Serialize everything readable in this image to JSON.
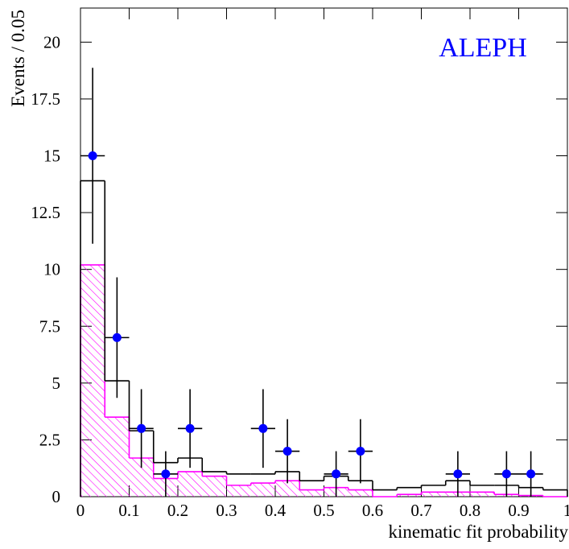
{
  "chart_data": {
    "type": "histogram",
    "ylabel": "Events / 0.05",
    "xlabel": "kinematic fit probability",
    "annotation": "ALEPH",
    "annotation_color": "#0000ff",
    "bins": [
      0,
      0.05,
      0.1,
      0.15,
      0.2,
      0.25,
      0.3,
      0.35,
      0.4,
      0.45,
      0.5,
      0.55,
      0.6,
      0.65,
      0.7,
      0.75,
      0.8,
      0.85,
      0.9,
      0.95,
      1
    ],
    "series": [
      {
        "color": "#000000",
        "hatch": false,
        "values": [
          13.9,
          5.1,
          2.9,
          1.5,
          1.7,
          1.1,
          1.0,
          1.0,
          1.1,
          0.7,
          0.9,
          0.7,
          0.3,
          0.4,
          0.5,
          0.7,
          0.5,
          0.5,
          0.4,
          0.3
        ]
      },
      {
        "color": "#ff00ff",
        "hatch": true,
        "values": [
          10.2,
          3.5,
          1.7,
          0.8,
          1.1,
          0.9,
          0.5,
          0.6,
          0.7,
          0.3,
          0.4,
          0.3,
          0,
          0.1,
          0.2,
          0.2,
          0.2,
          0.1,
          0.05,
          0
        ]
      }
    ],
    "points": {
      "color": "#0000ff",
      "x_error": 0.025,
      "x": [
        0.025,
        0.075,
        0.125,
        0.175,
        0.225,
        0.375,
        0.425,
        0.525,
        0.575,
        0.775,
        0.875,
        0.925
      ],
      "values": [
        15,
        7,
        3,
        1,
        3,
        3,
        2,
        1,
        2,
        1,
        1,
        1
      ],
      "errors": [
        3.87,
        2.65,
        1.73,
        1,
        1.73,
        1.73,
        1.41,
        1,
        1.41,
        1,
        1,
        1
      ]
    },
    "xlim": [
      0,
      1
    ],
    "ylim": [
      0,
      21.5
    ],
    "xticks": [
      0,
      0.1,
      0.2,
      0.3,
      0.4,
      0.5,
      0.6,
      0.7,
      0.8,
      0.9,
      1
    ],
    "yticks": [
      0,
      2.5,
      5,
      7.5,
      10,
      12.5,
      15,
      17.5,
      20
    ]
  }
}
